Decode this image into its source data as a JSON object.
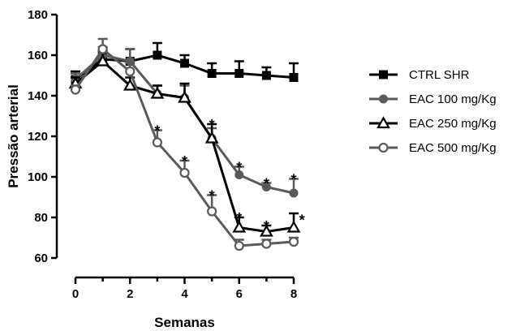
{
  "chart_data": {
    "type": "line",
    "xlabel": "Semanas",
    "ylabel": "Pressão arterial",
    "xlim": [
      0,
      8
    ],
    "ylim": [
      60,
      180
    ],
    "xticks": [
      "0",
      "2",
      "4",
      "6",
      "8"
    ],
    "yticks": [
      "60",
      "80",
      "100",
      "120",
      "140",
      "160",
      "180"
    ],
    "grid": false,
    "legend_position": "right",
    "x": [
      0,
      1,
      2,
      3,
      4,
      5,
      6,
      7,
      8
    ],
    "series": [
      {
        "name": "CTRL SHR",
        "marker": "square-filled",
        "color": "#000000",
        "values": [
          148,
          158,
          157,
          160,
          156,
          151,
          151,
          150,
          149
        ],
        "errors": [
          4,
          4,
          6,
          6,
          4,
          5,
          6,
          4,
          7
        ]
      },
      {
        "name": "EAC 100 mg/Kg",
        "marker": "circle-filled",
        "color": "#5a5a5a",
        "values": [
          148,
          160,
          157,
          141,
          139,
          119,
          101,
          95,
          92
        ],
        "errors": [
          3,
          4,
          6,
          4,
          6,
          5,
          4,
          2,
          7
        ]
      },
      {
        "name": "EAC 250 mg/Kg",
        "marker": "triangle-open",
        "color": "#000000",
        "values": [
          146,
          157,
          145,
          141,
          139,
          119,
          75,
          73,
          75
        ],
        "errors": [
          3,
          4,
          4,
          4,
          7,
          7,
          5,
          3,
          7
        ]
      },
      {
        "name": "EAC 500 mg/Kg",
        "marker": "circle-open",
        "color": "#5a5a5a",
        "values": [
          143,
          163,
          152,
          117,
          102,
          83,
          66,
          67,
          68
        ],
        "errors": [
          2,
          5,
          4,
          6,
          6,
          8,
          3,
          2,
          2
        ]
      }
    ],
    "annotations": [
      {
        "x": 3,
        "y": 125,
        "text": "*"
      },
      {
        "x": 4,
        "y": 110,
        "text": "*"
      },
      {
        "x": 5,
        "y": 128,
        "text": "*"
      },
      {
        "x": 5,
        "y": 93,
        "text": "*"
      },
      {
        "x": 6,
        "y": 107,
        "text": "*"
      },
      {
        "x": 6,
        "y": 82,
        "text": "*"
      },
      {
        "x": 7,
        "y": 99,
        "text": "*"
      },
      {
        "x": 7,
        "y": 78,
        "text": "*"
      },
      {
        "x": 8,
        "y": 101,
        "text": "*"
      },
      {
        "x": 8.3,
        "y": 81,
        "text": "*"
      }
    ]
  }
}
